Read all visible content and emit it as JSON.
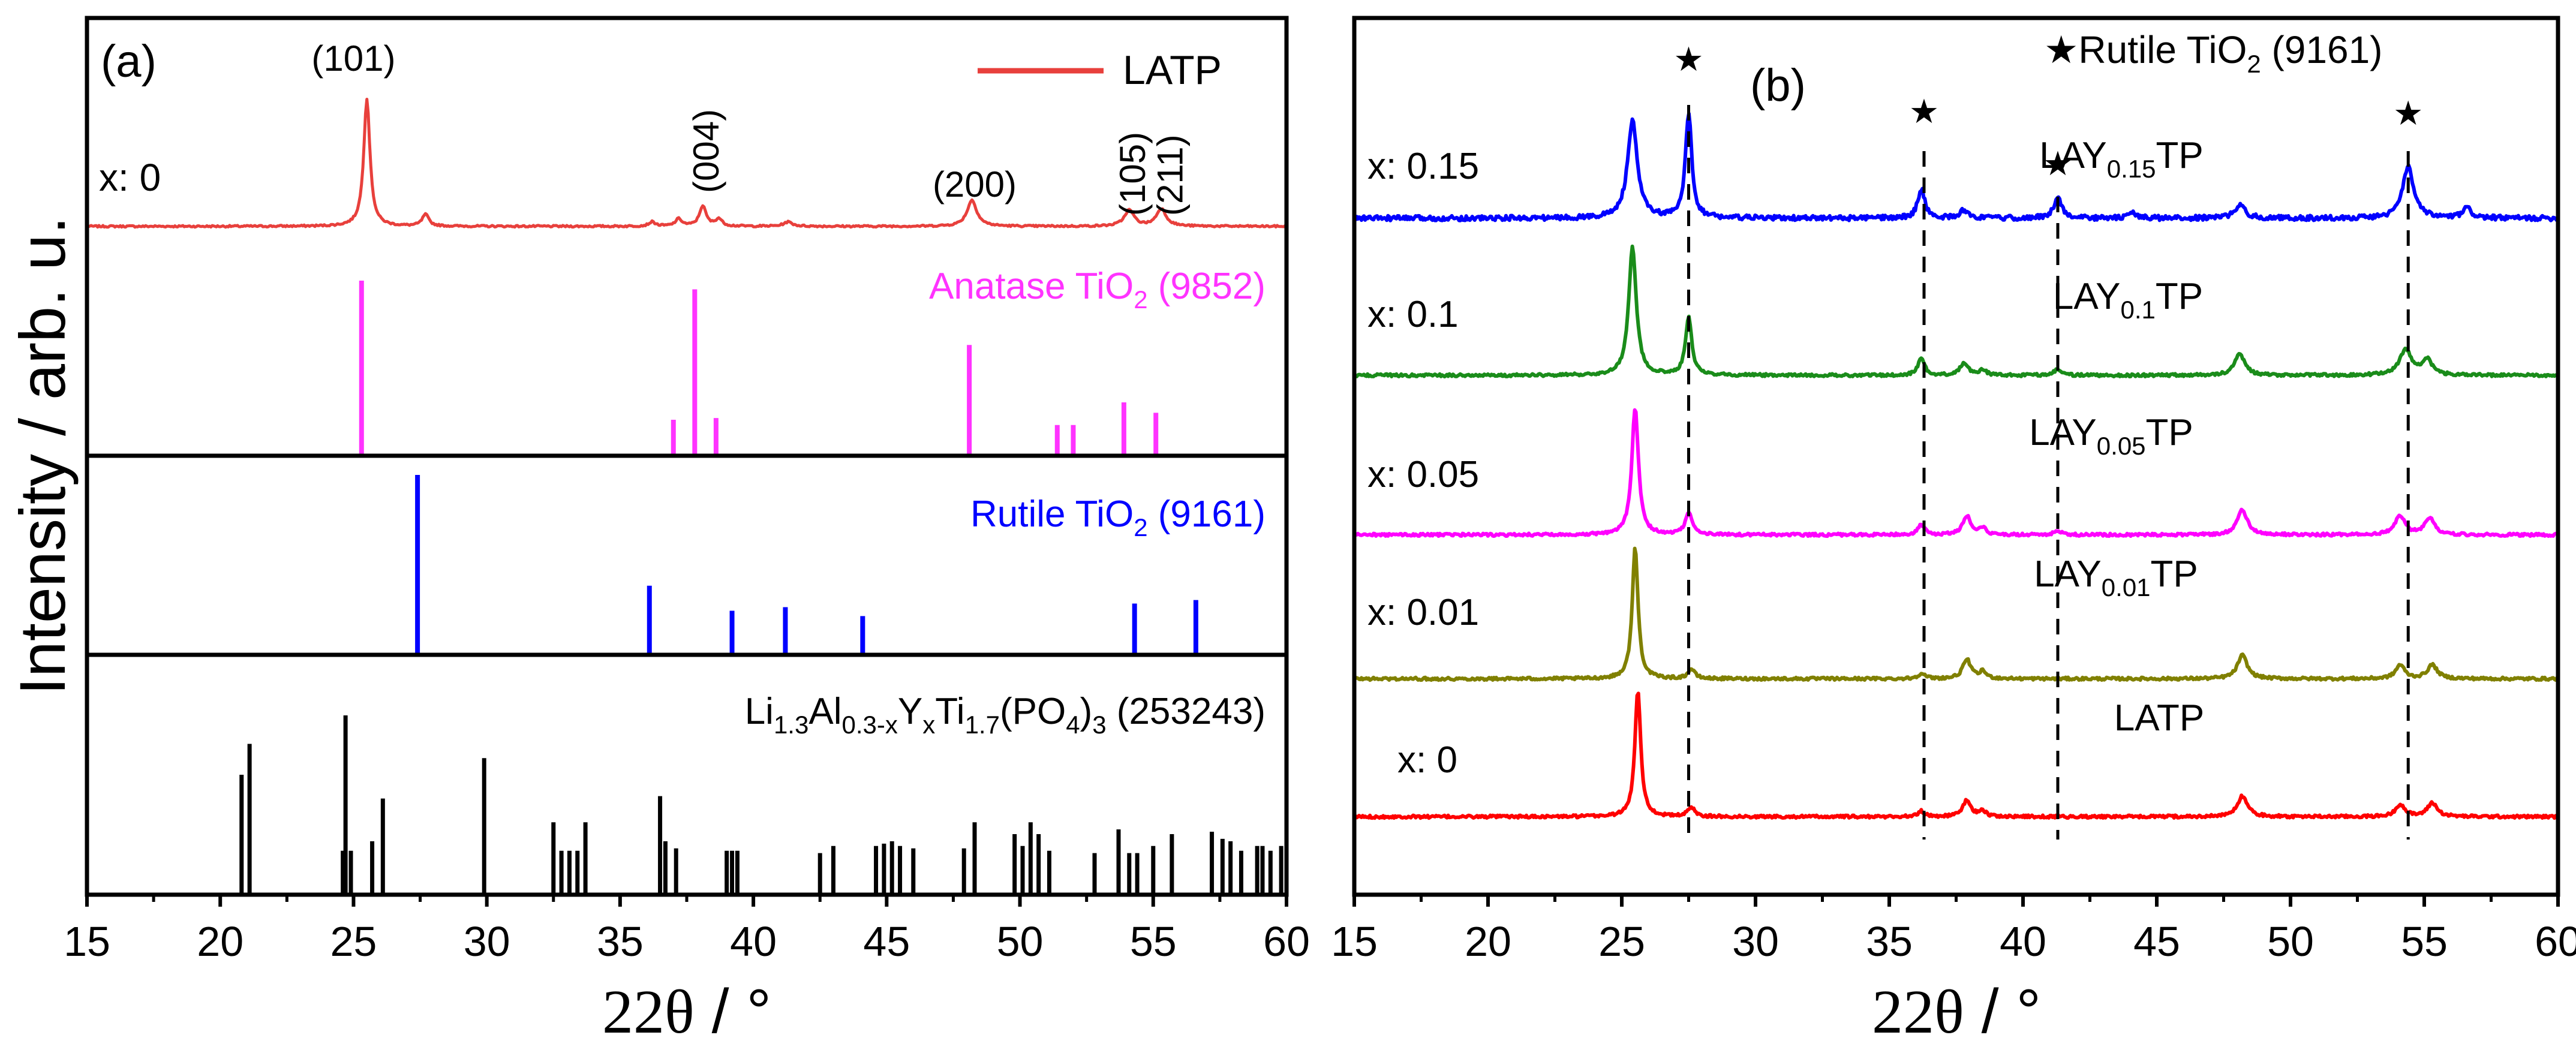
{
  "chart_data": [
    {
      "panel": "a",
      "type": "line",
      "panel_label": "(a)",
      "ylabel": "Intensity / arb. u.",
      "xlabel_theta": "2θ",
      "xlabel_rest": " / °",
      "xlim": [
        15,
        60
      ],
      "xticks": [
        15,
        20,
        25,
        30,
        35,
        40,
        45,
        50,
        55,
        60
      ],
      "top_pattern": {
        "label": "x: 0",
        "legend": "LATP",
        "color": "#e8403c",
        "baseline": 0.06,
        "peaks": [
          {
            "x": 25.5,
            "h": 0.88,
            "w": 0.14
          },
          {
            "x": 27.7,
            "h": 0.08,
            "w": 0.15
          },
          {
            "x": 36.2,
            "h": 0.03,
            "w": 0.15
          },
          {
            "x": 37.2,
            "h": 0.05,
            "w": 0.15
          },
          {
            "x": 38.1,
            "h": 0.14,
            "w": 0.15
          },
          {
            "x": 38.7,
            "h": 0.05,
            "w": 0.15
          },
          {
            "x": 41.3,
            "h": 0.03,
            "w": 0.2
          },
          {
            "x": 48.2,
            "h": 0.18,
            "w": 0.22
          },
          {
            "x": 54.1,
            "h": 0.11,
            "w": 0.22
          },
          {
            "x": 55.3,
            "h": 0.12,
            "w": 0.22
          }
        ],
        "hkl": [
          {
            "text": "(101)",
            "x": 25.0,
            "rotate": false
          },
          {
            "text": "(004)",
            "x": 38.2,
            "rotate": true
          },
          {
            "text": "(200)",
            "x": 48.3,
            "rotate": false
          },
          {
            "text": "(105)",
            "x": 54.2,
            "rotate": true
          },
          {
            "text": "(211)",
            "x": 55.6,
            "rotate": true
          }
        ]
      },
      "anatase": {
        "prefix": "Anatase TiO",
        "sub": "2",
        "suffix": " (9852)",
        "color": "#ff33ff",
        "sticks": [
          [
            25.3,
            1.0
          ],
          [
            37.0,
            0.2
          ],
          [
            37.8,
            0.95
          ],
          [
            38.6,
            0.21
          ],
          [
            48.1,
            0.63
          ],
          [
            51.4,
            0.17
          ],
          [
            52.0,
            0.17
          ],
          [
            53.9,
            0.3
          ],
          [
            55.1,
            0.24
          ]
        ]
      },
      "rutile": {
        "prefix": "Rutile TiO",
        "sub": "2",
        "suffix": " (9161)",
        "color": "#0000ff",
        "sticks": [
          [
            27.4,
            1.0
          ],
          [
            36.1,
            0.38
          ],
          [
            39.2,
            0.24
          ],
          [
            41.2,
            0.26
          ],
          [
            44.1,
            0.21
          ],
          [
            54.3,
            0.28
          ],
          [
            56.6,
            0.3
          ]
        ]
      },
      "latp_ref": {
        "label_parts": [
          "Li",
          "1.3",
          "Al",
          "0.3-x",
          "Y",
          "x",
          "Ti",
          "1.7",
          "(PO",
          "4",
          ")",
          "3",
          " (253243)"
        ],
        "color": "#000000",
        "sticks": [
          [
            20.8,
            0.5
          ],
          [
            21.1,
            0.63
          ],
          [
            24.6,
            0.18
          ],
          [
            24.7,
            0.75
          ],
          [
            24.9,
            0.18
          ],
          [
            25.7,
            0.22
          ],
          [
            26.1,
            0.4
          ],
          [
            29.9,
            0.57
          ],
          [
            32.5,
            0.3
          ],
          [
            32.8,
            0.18
          ],
          [
            33.1,
            0.18
          ],
          [
            33.4,
            0.18
          ],
          [
            33.7,
            0.3
          ],
          [
            36.5,
            0.41
          ],
          [
            36.7,
            0.22
          ],
          [
            37.1,
            0.19
          ],
          [
            39.0,
            0.18
          ],
          [
            39.2,
            0.18
          ],
          [
            39.4,
            0.18
          ],
          [
            42.5,
            0.17
          ],
          [
            43.0,
            0.2
          ],
          [
            44.6,
            0.2
          ],
          [
            44.9,
            0.21
          ],
          [
            45.2,
            0.22
          ],
          [
            45.5,
            0.2
          ],
          [
            46.0,
            0.19
          ],
          [
            47.9,
            0.19
          ],
          [
            48.3,
            0.3
          ],
          [
            49.8,
            0.25
          ],
          [
            50.1,
            0.2
          ],
          [
            50.4,
            0.3
          ],
          [
            50.7,
            0.25
          ],
          [
            51.1,
            0.18
          ],
          [
            52.8,
            0.17
          ],
          [
            53.7,
            0.27
          ],
          [
            54.1,
            0.17
          ],
          [
            54.4,
            0.17
          ],
          [
            55.0,
            0.2
          ],
          [
            55.7,
            0.25
          ],
          [
            57.2,
            0.26
          ],
          [
            57.6,
            0.23
          ],
          [
            57.9,
            0.22
          ],
          [
            58.3,
            0.18
          ],
          [
            58.9,
            0.2
          ],
          [
            59.1,
            0.2
          ],
          [
            59.4,
            0.18
          ],
          [
            59.8,
            0.2
          ]
        ]
      }
    },
    {
      "panel": "b",
      "type": "line",
      "panel_label": "(b)",
      "xlabel_theta": "2θ",
      "xlabel_rest": " / °",
      "xlim": [
        15,
        60
      ],
      "xticks": [
        15,
        20,
        25,
        30,
        35,
        40,
        45,
        50,
        55,
        60
      ],
      "legend_star": "★",
      "legend_prefix": "Rutile TiO",
      "legend_sub": "2",
      "legend_suffix": " (9161)",
      "star_glyph": "★",
      "rutile_marks": [
        27.5,
        36.3,
        41.3,
        54.4
      ],
      "series": [
        {
          "x_label": "x: 0",
          "main": "LATP",
          "sub": "",
          "tail": "",
          "color": "#ff0000",
          "peaks": [
            [
              25.6,
              0.92,
              0.13
            ],
            [
              27.6,
              0.07,
              0.15
            ],
            [
              36.2,
              0.04,
              0.15
            ],
            [
              37.9,
              0.12,
              0.18
            ],
            [
              38.5,
              0.04,
              0.15
            ],
            [
              48.2,
              0.15,
              0.22
            ],
            [
              54.1,
              0.09,
              0.2
            ],
            [
              55.3,
              0.1,
              0.22
            ]
          ]
        },
        {
          "x_label": "x: 0.01",
          "main": "LAY",
          "sub": "0.01",
          "tail": "TP",
          "color": "#808000",
          "peaks": [
            [
              25.5,
              0.95,
              0.13
            ],
            [
              27.6,
              0.07,
              0.15
            ],
            [
              36.2,
              0.04,
              0.15
            ],
            [
              37.9,
              0.14,
              0.18
            ],
            [
              38.5,
              0.05,
              0.15
            ],
            [
              48.2,
              0.17,
              0.22
            ],
            [
              54.1,
              0.1,
              0.2
            ],
            [
              55.3,
              0.1,
              0.22
            ]
          ]
        },
        {
          "x_label": "x: 0.05",
          "main": "LAY",
          "sub": "0.05",
          "tail": "TP",
          "color": "#ff00ff",
          "peaks": [
            [
              25.5,
              0.92,
              0.15
            ],
            [
              27.5,
              0.16,
              0.15
            ],
            [
              36.2,
              0.07,
              0.15
            ],
            [
              37.9,
              0.14,
              0.18
            ],
            [
              38.5,
              0.05,
              0.15
            ],
            [
              41.3,
              0.03,
              0.15
            ],
            [
              48.2,
              0.18,
              0.22
            ],
            [
              54.1,
              0.14,
              0.22
            ],
            [
              55.2,
              0.12,
              0.22
            ]
          ]
        },
        {
          "x_label": "x: 0.1",
          "main": "LAY",
          "sub": "0.1",
          "tail": "TP",
          "color": "#1a8c1a",
          "peaks": [
            [
              25.4,
              0.93,
              0.17
            ],
            [
              27.5,
              0.42,
              0.14
            ],
            [
              36.2,
              0.13,
              0.14
            ],
            [
              37.8,
              0.09,
              0.18
            ],
            [
              38.5,
              0.04,
              0.15
            ],
            [
              41.3,
              0.05,
              0.15
            ],
            [
              48.1,
              0.16,
              0.22
            ],
            [
              54.3,
              0.18,
              0.28
            ],
            [
              55.1,
              0.11,
              0.22
            ]
          ]
        },
        {
          "x_label": "x: 0.15",
          "main": "LAY",
          "sub": "0.15",
          "tail": "TP",
          "color": "#0000ff",
          "peaks": [
            [
              25.4,
              0.7,
              0.22
            ],
            [
              27.5,
              0.76,
              0.14
            ],
            [
              36.2,
              0.21,
              0.16
            ],
            [
              37.8,
              0.06,
              0.18
            ],
            [
              41.3,
              0.16,
              0.17
            ],
            [
              44.1,
              0.04,
              0.17
            ],
            [
              48.1,
              0.09,
              0.25
            ],
            [
              54.4,
              0.38,
              0.24
            ],
            [
              56.6,
              0.07,
              0.2
            ]
          ]
        }
      ]
    }
  ]
}
